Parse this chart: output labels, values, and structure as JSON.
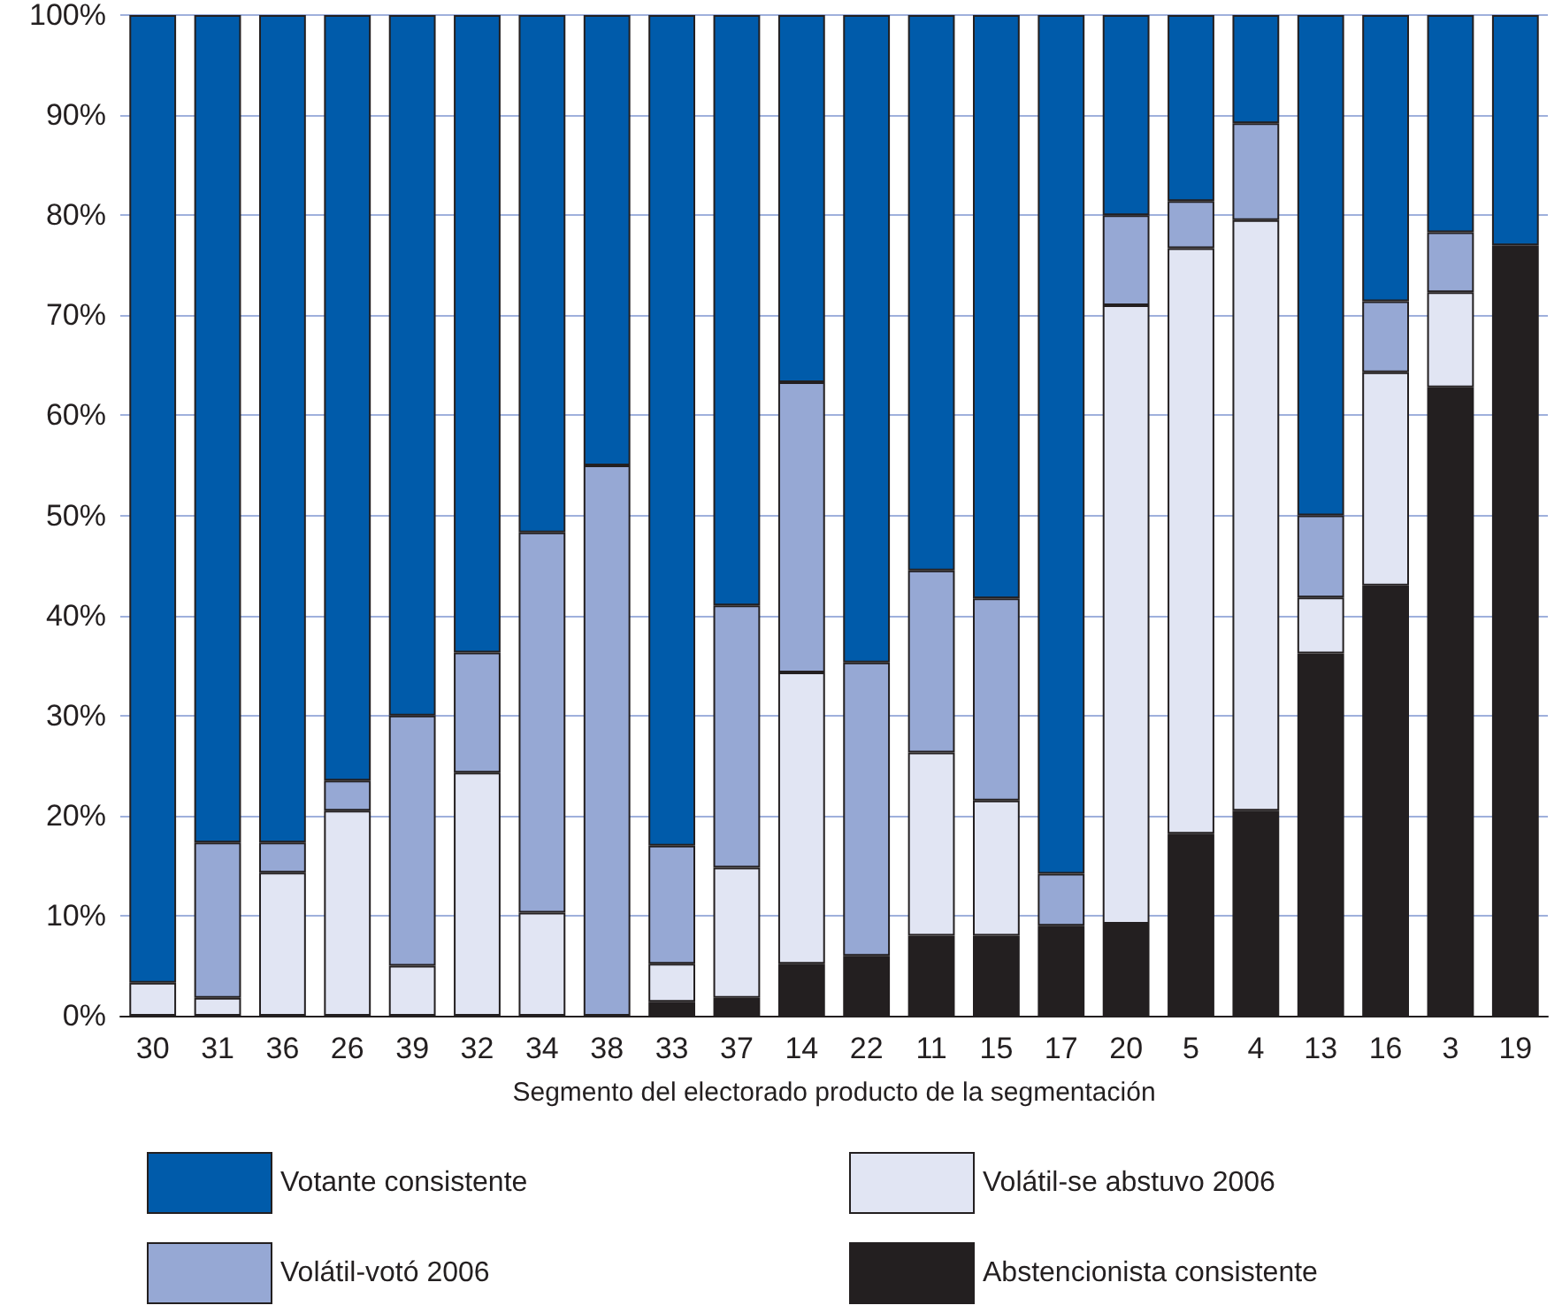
{
  "chart_data": {
    "type": "bar",
    "stacked": true,
    "xlabel": "Segmento del electorado producto de la segmentación",
    "categories": [
      "30",
      "31",
      "36",
      "26",
      "39",
      "32",
      "34",
      "38",
      "33",
      "37",
      "14",
      "22",
      "11",
      "15",
      "17",
      "20",
      "5",
      "4",
      "13",
      "16",
      "3",
      "19"
    ],
    "series": [
      {
        "name": "Abstencionista consistente",
        "color": "#231f20",
        "values": [
          0,
          0,
          0,
          0,
          0,
          0,
          0,
          0,
          1.4,
          1.8,
          5.2,
          6,
          8,
          8,
          9,
          9.2,
          18.2,
          20.5,
          36.2,
          43,
          62.8,
          77
        ]
      },
      {
        "name": "Volátil-se abstuvo 2006",
        "color": "#e1e5f3",
        "values": [
          3.3,
          1.8,
          14.3,
          20.5,
          5,
          24.3,
          10.3,
          0,
          3.8,
          13,
          29.1,
          0,
          18.3,
          13.5,
          0,
          61.8,
          58.5,
          59,
          5.6,
          21.3,
          9.5,
          0
        ]
      },
      {
        "name": "Volátil-votó 2006",
        "color": "#96a8d4",
        "values": [
          0,
          15.5,
          3,
          3,
          25,
          12,
          38,
          55,
          11.8,
          26.2,
          29,
          29.3,
          18.2,
          20.2,
          5.2,
          9,
          4.7,
          9.7,
          8.2,
          7.1,
          6,
          0
        ]
      },
      {
        "name": "Votante consistente",
        "color": "#005baa",
        "values": [
          96.7,
          82.7,
          82.7,
          76.5,
          70,
          63.7,
          51.7,
          45,
          83,
          59,
          36.7,
          64.7,
          55.5,
          58.3,
          85.8,
          20,
          18.6,
          10.8,
          50,
          28.6,
          21.7,
          23
        ]
      }
    ],
    "ylim": [
      0,
      100
    ],
    "yticks": [
      {
        "value": 0,
        "label": "0%"
      },
      {
        "value": 10,
        "label": "10%"
      },
      {
        "value": 20,
        "label": "20%"
      },
      {
        "value": 30,
        "label": "30%"
      },
      {
        "value": 40,
        "label": "40%"
      },
      {
        "value": 50,
        "label": "50%"
      },
      {
        "value": 60,
        "label": "60%"
      },
      {
        "value": 70,
        "label": "70%"
      },
      {
        "value": 80,
        "label": "80%"
      },
      {
        "value": 90,
        "label": "90%"
      },
      {
        "value": 100,
        "label": "100%"
      }
    ],
    "grid": "y",
    "legend": "bottom"
  }
}
